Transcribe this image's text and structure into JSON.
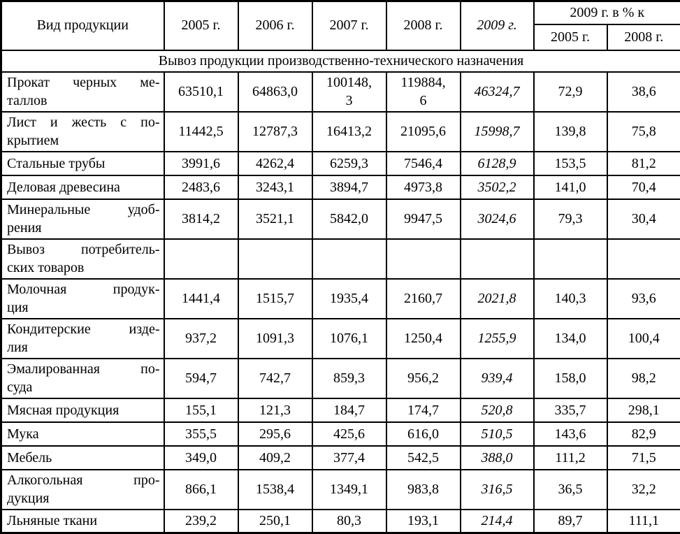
{
  "header": {
    "product_column": "Вид продукции",
    "year_columns": [
      "2005 г.",
      "2006 г.",
      "2007 г.",
      "2008 г.",
      "2009 г."
    ],
    "percent_group_label": "2009 г. в % к",
    "percent_subcolumns": [
      "2005 г.",
      "2008 г."
    ]
  },
  "section_title": "Вывоз продукции производственно-технического назначения",
  "rows": [
    {
      "label_lines": [
        "Прокат черных ме-",
        "таллов"
      ],
      "values": [
        "63510,1",
        "64863,0",
        "100148,\n3",
        "119884,\n6",
        "46324,7",
        "72,9",
        "38,6"
      ]
    },
    {
      "label_lines": [
        "Лист и жесть с по-",
        "крытием"
      ],
      "values": [
        "11442,5",
        "12787,3",
        "16413,2",
        "21095,6",
        "15998,7",
        "139,8",
        "75,8"
      ]
    },
    {
      "label_lines": [
        "Стальные трубы"
      ],
      "values": [
        "3991,6",
        "4262,4",
        "6259,3",
        "7546,4",
        "6128,9",
        "153,5",
        "81,2"
      ]
    },
    {
      "label_lines": [
        "Деловая древесина"
      ],
      "values": [
        "2483,6",
        "3243,1",
        "3894,7",
        "4973,8",
        "3502,2",
        "141,0",
        "70,4"
      ]
    },
    {
      "label_lines": [
        "Минеральные удоб-",
        "рения"
      ],
      "values": [
        "3814,2",
        "3521,1",
        "5842,0",
        "9947,5",
        "3024,6",
        "79,3",
        "30,4"
      ]
    },
    {
      "label_lines": [
        "Вывоз потребитель-",
        "ских товаров"
      ],
      "values": [
        "",
        "",
        "",
        "",
        "",
        "",
        ""
      ]
    },
    {
      "label_lines": [
        "Молочная продук-",
        "ция"
      ],
      "values": [
        "1441,4",
        "1515,7",
        "1935,4",
        "2160,7",
        "2021,8",
        "140,3",
        "93,6"
      ]
    },
    {
      "label_lines": [
        "Кондитерские изде-",
        "лия"
      ],
      "values": [
        "937,2",
        "1091,3",
        "1076,1",
        "1250,4",
        "1255,9",
        "134,0",
        "100,4"
      ]
    },
    {
      "label_lines": [
        "Эмалированная по-",
        "суда"
      ],
      "values": [
        "594,7",
        "742,7",
        "859,3",
        "956,2",
        "939,4",
        "158,0",
        "98,2"
      ]
    },
    {
      "label_lines": [
        "Мясная продукция"
      ],
      "values": [
        "155,1",
        "121,3",
        "184,7",
        "174,7",
        "520,8",
        "335,7",
        "298,1"
      ]
    },
    {
      "label_lines": [
        "Мука"
      ],
      "values": [
        "355,5",
        "295,6",
        "425,6",
        "616,0",
        "510,5",
        "143,6",
        "82,9"
      ]
    },
    {
      "label_lines": [
        "Мебель"
      ],
      "values": [
        "349,0",
        "409,2",
        "377,4",
        "542,5",
        "388,0",
        "111,2",
        "71,5"
      ]
    },
    {
      "label_lines": [
        "Алкогольная про-",
        "дукция"
      ],
      "values": [
        "866,1",
        "1538,4",
        "1349,1",
        "983,8",
        "316,5",
        "36,5",
        "32,2"
      ]
    },
    {
      "label_lines": [
        "Льняные ткани"
      ],
      "values": [
        "239,2",
        "250,1",
        "80,3",
        "193,1",
        "214,4",
        "89,7",
        "111,1"
      ]
    }
  ]
}
